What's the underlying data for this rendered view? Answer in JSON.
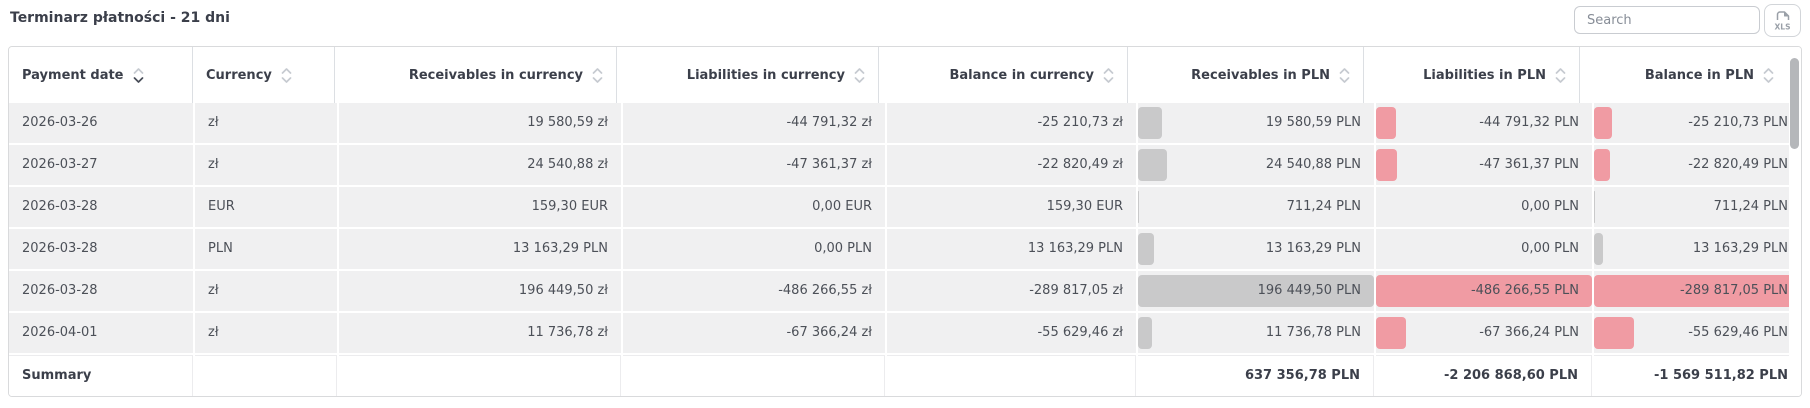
{
  "page": {
    "title": "Terminarz płatności - 21 dni",
    "search": {
      "placeholder": "Search"
    },
    "export": {
      "icon": "xls-file-icon",
      "label": "XLS"
    }
  },
  "colors": {
    "bar_gray": "#c9c9ca",
    "bar_pink": "#f09ba3",
    "row_bg": "#f0f0f1",
    "header_text": "#3b3f4a",
    "cell_text": "#4c5058",
    "sort_active": "#474c57",
    "sort_inactive": "#c6cad0"
  },
  "table": {
    "columns": [
      {
        "label": "Payment date",
        "align": "left",
        "sort": "down-active"
      },
      {
        "label": "Currency",
        "align": "left",
        "sort": "none"
      },
      {
        "label": "Receivables in currency",
        "align": "right",
        "sort": "none"
      },
      {
        "label": "Liabilities in currency",
        "align": "right",
        "sort": "none"
      },
      {
        "label": "Balance in currency",
        "align": "right",
        "sort": "none"
      },
      {
        "label": "Receivables in PLN",
        "align": "right",
        "sort": "none"
      },
      {
        "label": "Liabilities in PLN",
        "align": "right",
        "sort": "none"
      },
      {
        "label": "Balance in PLN",
        "align": "right",
        "sort": "none"
      }
    ],
    "rows": [
      {
        "cells": [
          "2026-03-26",
          "zł",
          "19 580,59 zł",
          "-44 791,32 zł",
          "-25 210,73 zł",
          "19 580,59 PLN",
          "-44 791,32 PLN",
          "-25 210,73 PLN"
        ],
        "bars": [
          0.0997,
          0.0921,
          0.087
        ],
        "bar_colors": [
          "gray",
          "pink",
          "pink"
        ]
      },
      {
        "cells": [
          "2026-03-27",
          "zł",
          "24 540,88 zł",
          "-47 361,37 zł",
          "-22 820,49 zł",
          "24 540,88 PLN",
          "-47 361,37 PLN",
          "-22 820,49 PLN"
        ],
        "bars": [
          0.1249,
          0.0974,
          0.0787
        ],
        "bar_colors": [
          "gray",
          "pink",
          "pink"
        ]
      },
      {
        "cells": [
          "2026-03-28",
          "EUR",
          "159,30 EUR",
          "0,00 EUR",
          "159,30 EUR",
          "711,24 PLN",
          "0,00 PLN",
          "711,24 PLN"
        ],
        "bars": [
          0.0036,
          0,
          0.0025
        ],
        "bar_colors": [
          "gray",
          "none",
          "gray"
        ]
      },
      {
        "cells": [
          "2026-03-28",
          "PLN",
          "13 163,29 PLN",
          "0,00 PLN",
          "13 163,29 PLN",
          "13 163,29 PLN",
          "0,00 PLN",
          "13 163,29 PLN"
        ],
        "bars": [
          0.067,
          0,
          0.0454
        ],
        "bar_colors": [
          "gray",
          "none",
          "gray"
        ]
      },
      {
        "cells": [
          "2026-03-28",
          "zł",
          "196 449,50 zł",
          "-486 266,55 zł",
          "-289 817,05 zł",
          "196 449,50 PLN",
          "-486 266,55 PLN",
          "-289 817,05 PLN"
        ],
        "bars": [
          1,
          1,
          1
        ],
        "bar_colors": [
          "gray",
          "pink",
          "pink"
        ]
      },
      {
        "cells": [
          "2026-04-01",
          "zł",
          "11 736,78 zł",
          "-67 366,24 zł",
          "-55 629,46 zł",
          "11 736,78 PLN",
          "-67 366,24 PLN",
          "-55 629,46 PLN"
        ],
        "bars": [
          0.0597,
          0.1385,
          0.1919
        ],
        "bar_colors": [
          "gray",
          "pink",
          "pink"
        ]
      }
    ],
    "summary": {
      "label": "Summary",
      "values": [
        "637 356,78 PLN",
        "-2 206 868,60 PLN",
        "-1 569 511,82 PLN"
      ]
    }
  }
}
